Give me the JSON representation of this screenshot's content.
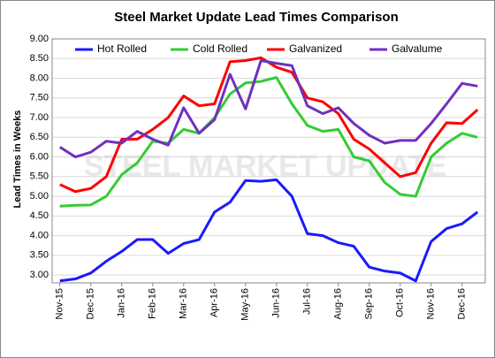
{
  "chart_data": {
    "type": "line",
    "title": "Steel Market Update Lead Times Comparison",
    "y_label": "Lead Times in Weeks",
    "watermark": "STEEL MARKET UPDATE",
    "categories": [
      "Nov-15",
      null,
      "Dec-15",
      null,
      "Jan-16",
      null,
      "Feb-16",
      null,
      "Mar-16",
      null,
      "Apr-16",
      null,
      "May-16",
      null,
      "Jun-16",
      null,
      "Jul-16",
      null,
      "Aug-16",
      null,
      "Sep-16",
      null,
      "Oct-16",
      null,
      "Nov-16",
      null,
      "Dec-16",
      null
    ],
    "series": [
      {
        "name": "Hot Rolled",
        "color": "#1a1aff",
        "values": [
          2.85,
          2.9,
          3.05,
          3.35,
          3.6,
          3.9,
          3.9,
          3.55,
          3.8,
          3.9,
          4.6,
          4.85,
          5.4,
          5.38,
          5.42,
          5.0,
          4.05,
          4.0,
          3.82,
          3.73,
          3.2,
          3.1,
          3.05,
          2.85,
          3.85,
          4.18,
          4.3,
          4.6
        ]
      },
      {
        "name": "Cold Rolled",
        "color": "#33cc33",
        "values": [
          4.75,
          4.77,
          4.78,
          5.0,
          5.55,
          5.85,
          6.4,
          6.35,
          6.7,
          6.6,
          7.0,
          7.6,
          7.88,
          7.92,
          8.02,
          7.35,
          6.8,
          6.65,
          6.7,
          6.0,
          5.9,
          5.35,
          5.05,
          5.0,
          6.0,
          6.35,
          6.6,
          6.5
        ]
      },
      {
        "name": "Galvanized",
        "color": "#ff0000",
        "values": [
          5.3,
          5.12,
          5.2,
          5.5,
          6.45,
          6.45,
          6.7,
          7.0,
          7.55,
          7.3,
          7.35,
          8.42,
          8.45,
          8.52,
          8.28,
          8.15,
          7.5,
          7.4,
          7.1,
          6.45,
          6.2,
          5.85,
          5.5,
          5.6,
          6.35,
          6.87,
          6.85,
          7.2
        ]
      },
      {
        "name": "Galvalume",
        "color": "#7030c0",
        "values": [
          6.25,
          6.0,
          6.12,
          6.4,
          6.35,
          6.65,
          6.45,
          6.3,
          7.25,
          6.6,
          6.95,
          8.1,
          7.22,
          8.45,
          8.38,
          8.32,
          7.3,
          7.1,
          7.25,
          6.85,
          6.55,
          6.35,
          6.42,
          6.42,
          6.85,
          7.35,
          7.87,
          7.8
        ]
      }
    ],
    "ylim": [
      2.8,
      9
    ],
    "yticks": [
      {
        "value": 3,
        "label": "3.00"
      },
      {
        "value": 3.5,
        "label": "3.50"
      },
      {
        "value": 4,
        "label": "4.00"
      },
      {
        "value": 4.5,
        "label": "4.50"
      },
      {
        "value": 5,
        "label": "5.00"
      },
      {
        "value": 5.5,
        "label": "5.50"
      },
      {
        "value": 6,
        "label": "6.00"
      },
      {
        "value": 6.5,
        "label": "6.50"
      },
      {
        "value": 7,
        "label": "7.00"
      },
      {
        "value": 7.5,
        "label": "7.50"
      },
      {
        "value": 8,
        "label": "8.00"
      },
      {
        "value": 8.5,
        "label": "8.50"
      },
      {
        "value": 9,
        "label": "9.00"
      }
    ],
    "grid": true,
    "legend": "top"
  }
}
